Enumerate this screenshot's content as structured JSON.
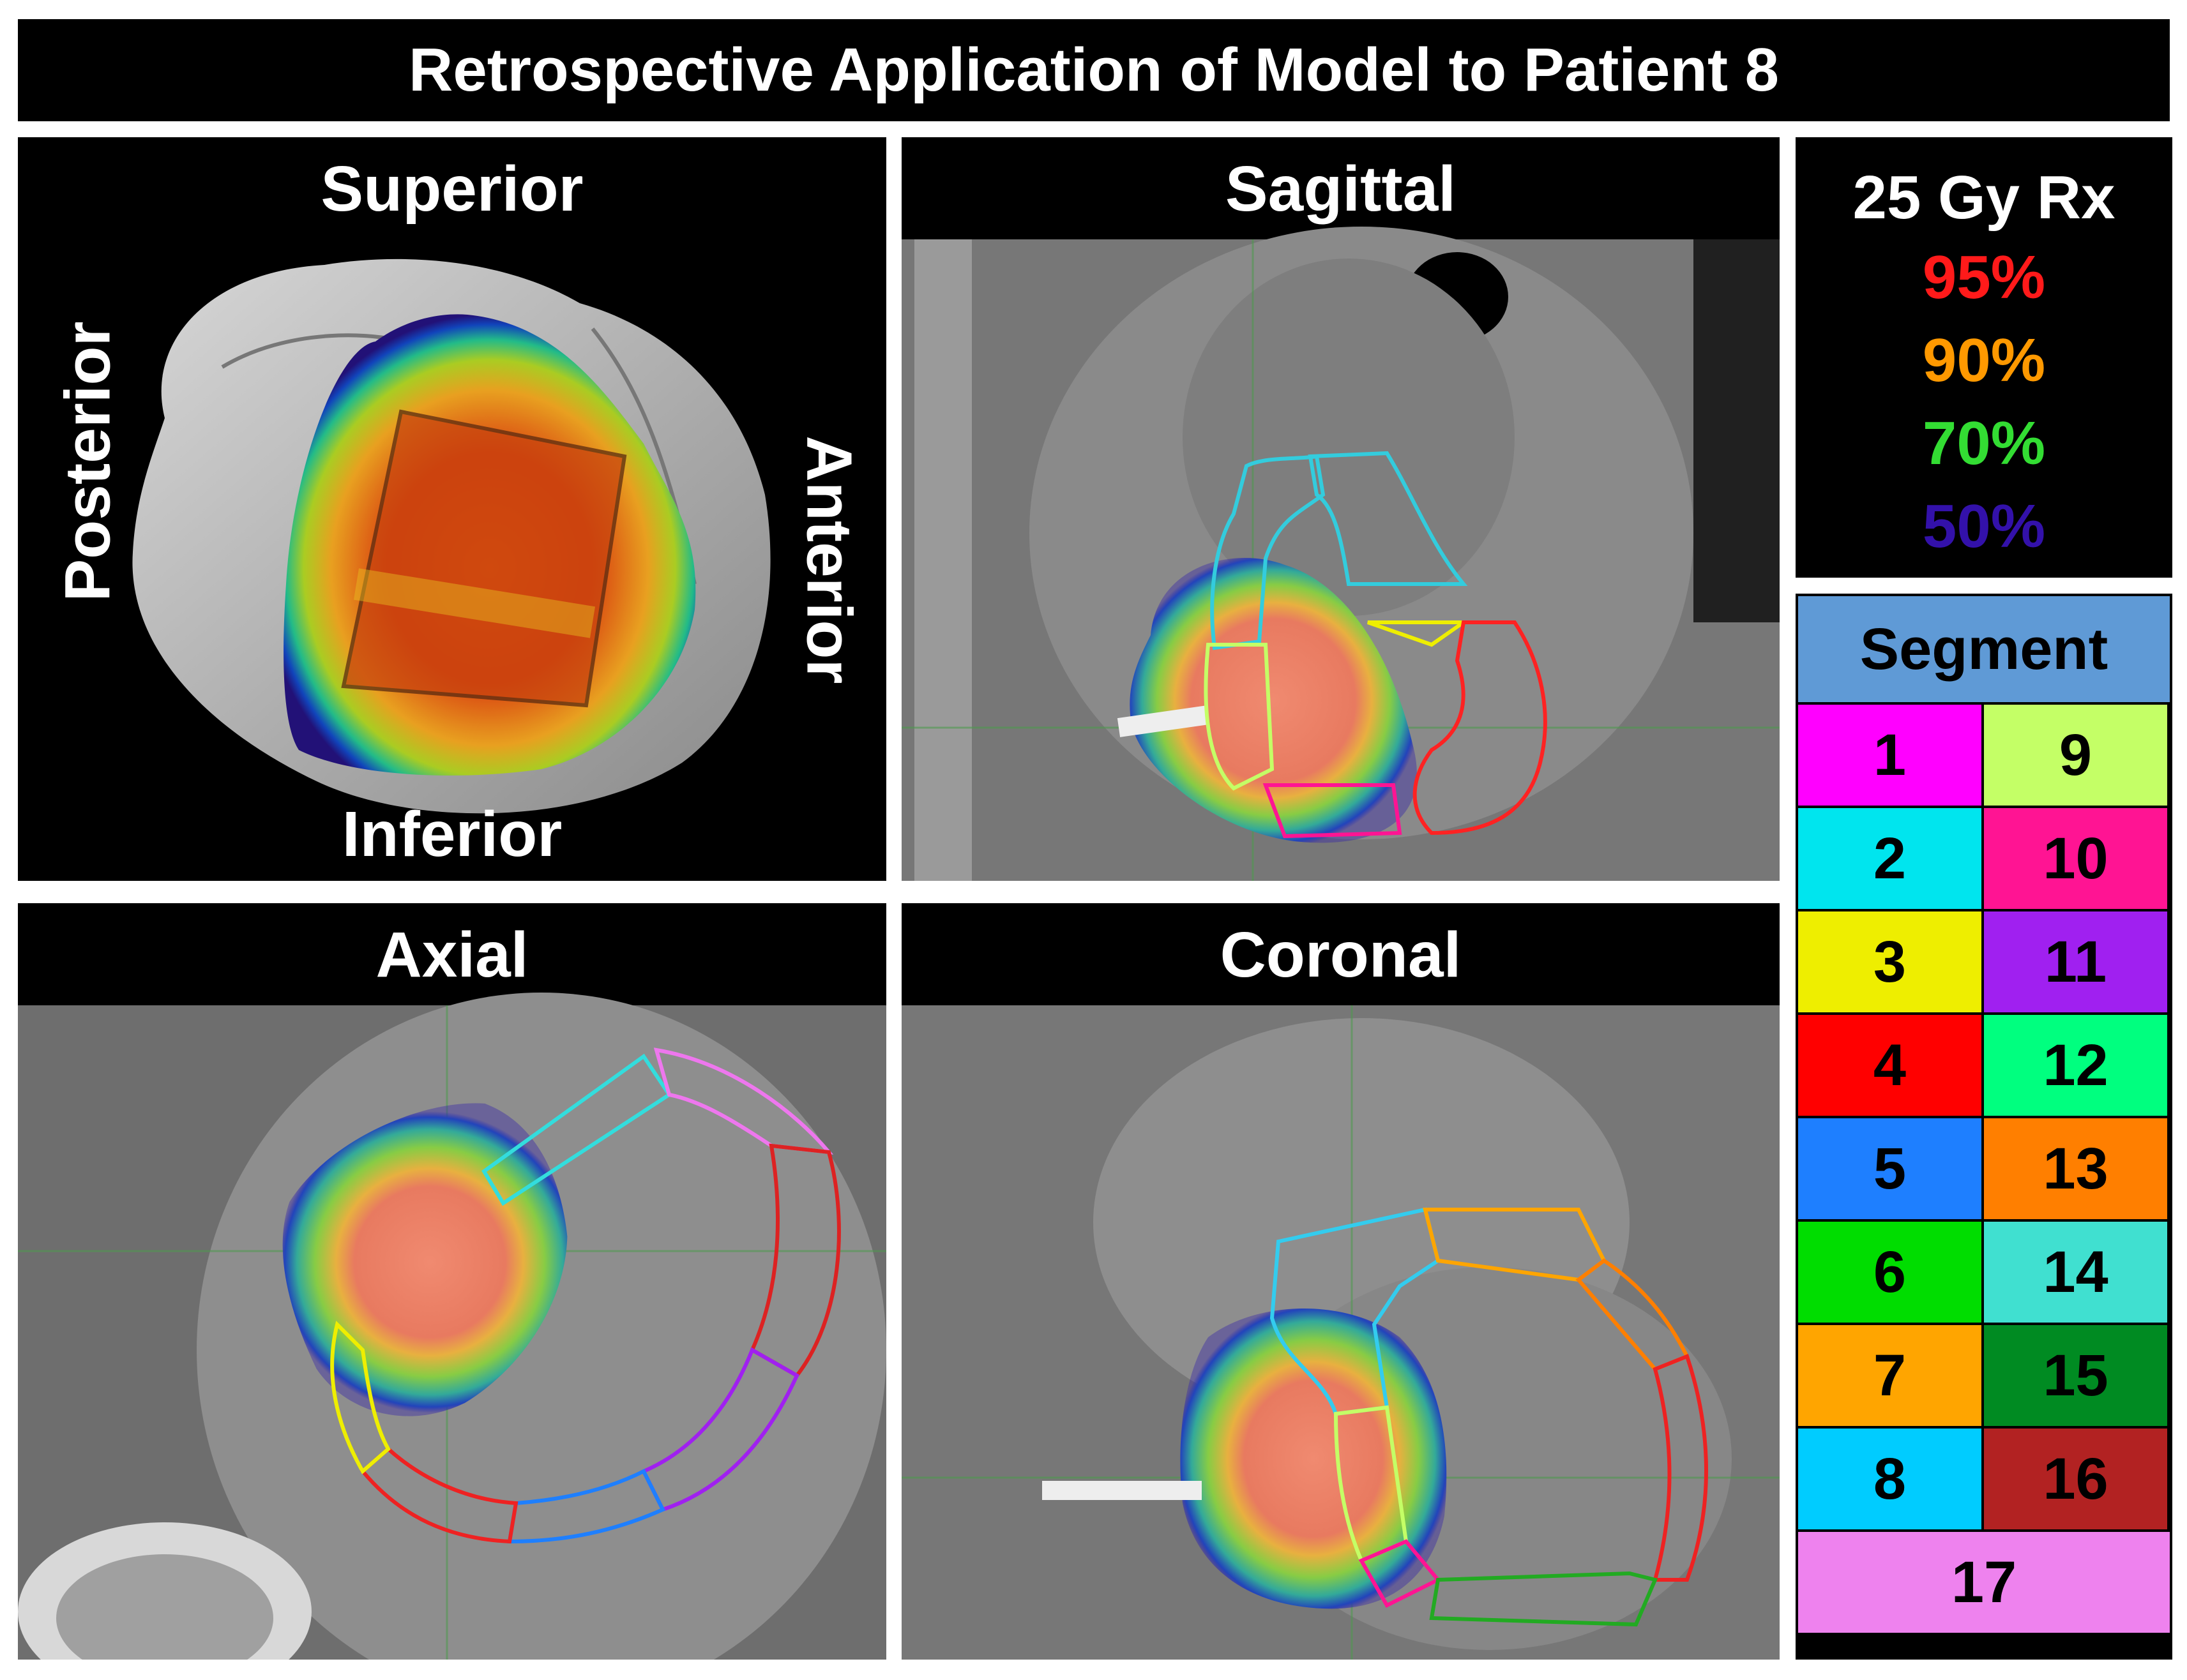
{
  "title": "Retrospective Application of Model to Patient 8",
  "panels": {
    "superior": {
      "title": "Superior",
      "left_label": "Posterior",
      "right_label": "Anterior",
      "bottom_label": "Inferior"
    },
    "sagittal": {
      "title": "Sagittal"
    },
    "axial": {
      "title": "Axial"
    },
    "coronal": {
      "title": "Coronal"
    }
  },
  "dose_legend": {
    "title": "25 Gy Rx",
    "levels": [
      {
        "label": "95%",
        "color": "#ff1a1a"
      },
      {
        "label": "90%",
        "color": "#ff9900"
      },
      {
        "label": "70%",
        "color": "#33dd33"
      },
      {
        "label": "50%",
        "color": "#3311aa"
      }
    ]
  },
  "segment_table": {
    "header": "Segment",
    "segments": [
      {
        "label": "1",
        "color": "#ff00ff"
      },
      {
        "label": "2",
        "color": "#00e5ee"
      },
      {
        "label": "3",
        "color": "#eeee00"
      },
      {
        "label": "4",
        "color": "#ff0000"
      },
      {
        "label": "5",
        "color": "#1e7fff"
      },
      {
        "label": "6",
        "color": "#00dd00"
      },
      {
        "label": "7",
        "color": "#ffa500"
      },
      {
        "label": "8",
        "color": "#00ccff"
      },
      {
        "label": "9",
        "color": "#c4ff66"
      },
      {
        "label": "10",
        "color": "#ff1493"
      },
      {
        "label": "11",
        "color": "#a020f0"
      },
      {
        "label": "12",
        "color": "#00ff7f"
      },
      {
        "label": "13",
        "color": "#ff7f00"
      },
      {
        "label": "14",
        "color": "#40e0d0"
      },
      {
        "label": "15",
        "color": "#008b22"
      },
      {
        "label": "16",
        "color": "#b22222"
      },
      {
        "label": "17",
        "color": "#ee82ee"
      }
    ]
  }
}
